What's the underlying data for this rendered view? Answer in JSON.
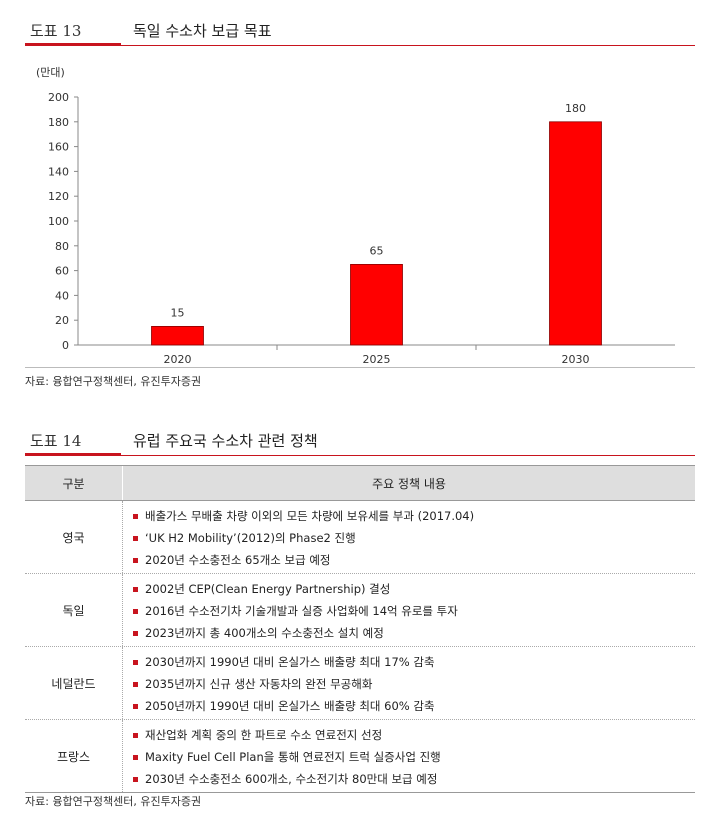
{
  "figure13": {
    "number": "도표 13",
    "title": "독일 수소차 보급 목표",
    "source": "자료: 융합연구정책센터, 유진투자증권"
  },
  "chart_data": {
    "type": "bar",
    "unit_label": "(만대)",
    "categories": [
      "2020",
      "2025",
      "2030"
    ],
    "values": [
      15,
      65,
      180
    ],
    "data_labels": [
      "15",
      "65",
      "180"
    ],
    "yticks": [
      "0",
      "20",
      "40",
      "60",
      "80",
      "100",
      "120",
      "140",
      "160",
      "180",
      "200"
    ],
    "ylim": [
      0,
      200
    ],
    "bar_color": "#ff0000",
    "grid": false
  },
  "figure14": {
    "number": "도표 14",
    "title": "유럽 주요국 수소차 관련 정책",
    "source": "자료: 융합연구정책센터, 유진투자증권",
    "header": {
      "col1": "구분",
      "col2": "주요 정책 내용"
    },
    "rows": [
      {
        "country": "영국",
        "items": [
          "배출가스 무배출 차량 이외의 모든 차량에 보유세를 부과 (2017.04)",
          "‘UK H2 Mobility’(2012)의 Phase2 진행",
          "2020년 수소충전소 65개소 보급 예정"
        ]
      },
      {
        "country": "독일",
        "items": [
          "2002년 CEP(Clean Energy Partnership) 결성",
          "2016년 수소전기차 기술개발과 실증 사업화에 14억 유로를 투자",
          "2023년까지 총 400개소의 수소충전소 설치 예정"
        ]
      },
      {
        "country": "네덜란드",
        "items": [
          "2030년까지 1990년 대비 온실가스 배출량 최대 17% 감축",
          "2035년까지 신규 생산 자동차의 완전 무공해화",
          "2050년까지 1990년 대비 온실가스 배출량 최대 60% 감축"
        ]
      },
      {
        "country": "프랑스",
        "items": [
          "재산업화 계획 중의 한 파트로 수소 연료전지 선정",
          "Maxity Fuel Cell Plan을 통해 연료전지 트럭 실증사업 진행",
          "2030년 수소충전소 600개소, 수소전기차 80만대 보급 예정"
        ]
      }
    ]
  }
}
